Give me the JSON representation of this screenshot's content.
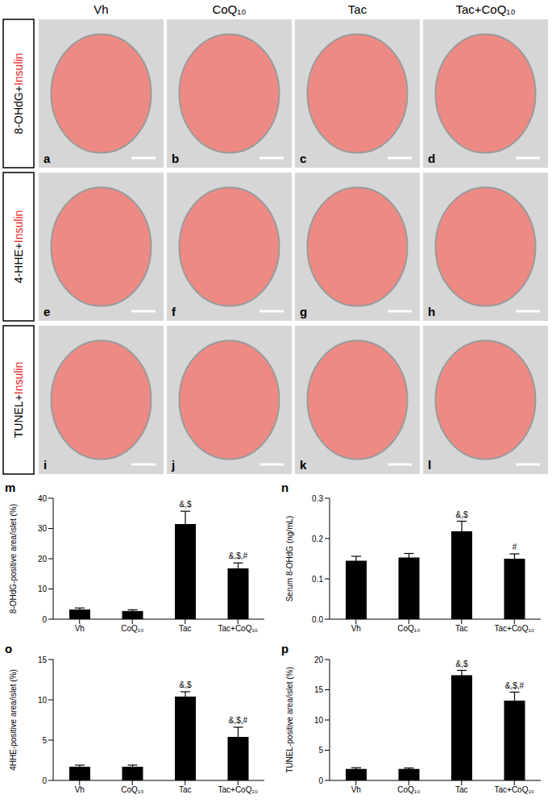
{
  "image_grid": {
    "columns": [
      "Vh",
      "CoQ₁₀",
      "Tac",
      "Tac+CoQ₁₀"
    ],
    "rows": [
      {
        "label": [
          "8-OHdG+",
          "Insulin"
        ],
        "panels": [
          "a",
          "b",
          "c",
          "d"
        ]
      },
      {
        "label": [
          "4-HHE+",
          "Insulin"
        ],
        "panels": [
          "e",
          "f",
          "g",
          "h"
        ]
      },
      {
        "label": [
          "TUNEL+",
          "Insulin"
        ],
        "panels": [
          "i",
          "j",
          "k",
          "l"
        ]
      }
    ]
  },
  "chart_data": [
    {
      "panel_label": "m",
      "type": "bar",
      "y_label": "8-OHdG-positive area/islet (%)",
      "categories": [
        "Vh",
        "CoQ₁₀",
        "Tac",
        "Tac+CoQ₁₀"
      ],
      "values": [
        3.2,
        2.7,
        31.5,
        16.8
      ],
      "errors": [
        0.5,
        0.4,
        4.2,
        1.8
      ],
      "annotations": [
        null,
        null,
        "&,$",
        "&,$,#"
      ],
      "color": "#000000",
      "ylim": [
        0,
        40
      ],
      "yticks": [
        0,
        10,
        20,
        30,
        40
      ]
    },
    {
      "panel_label": "n",
      "type": "bar",
      "y_label": "Serum 8-OHdG (ng/mL)",
      "categories": [
        "Vh",
        "CoQ₁₀",
        "Tac",
        "Tac+CoQ₁₀"
      ],
      "values": [
        0.145,
        0.153,
        0.218,
        0.15
      ],
      "errors": [
        0.011,
        0.01,
        0.025,
        0.012
      ],
      "annotations": [
        null,
        null,
        "&,$",
        "#"
      ],
      "color": "#000000",
      "ylim": [
        0,
        0.3
      ],
      "yticks": [
        {
          "value": 0,
          "label": "0.0"
        },
        0.1,
        0.2,
        0.3
      ]
    },
    {
      "panel_label": "o",
      "type": "bar",
      "y_label": "4HHE-positive area/islet (%)",
      "categories": [
        "Vh",
        "CoQ₁₀",
        "Tac",
        "Tac+CoQ₁₀"
      ],
      "values": [
        1.7,
        1.7,
        10.4,
        5.4
      ],
      "errors": [
        0.2,
        0.2,
        0.6,
        1.2
      ],
      "annotations": [
        null,
        null,
        "&,$",
        "&,$,#"
      ],
      "color": "#000000",
      "ylim": [
        0,
        15
      ],
      "yticks": [
        0,
        5,
        10,
        15
      ]
    },
    {
      "panel_label": "p",
      "type": "bar",
      "y_label": "TUNEL-positive area/islet (%)",
      "categories": [
        "Vh",
        "CoQ₁₀",
        "Tac",
        "Tac+CoQ₁₀"
      ],
      "values": [
        1.9,
        1.9,
        17.4,
        13.2
      ],
      "errors": [
        0.2,
        0.15,
        0.8,
        1.4
      ],
      "annotations": [
        null,
        null,
        "&,$",
        "&,$,#"
      ],
      "color": "#000000",
      "ylim": [
        0,
        20
      ],
      "yticks": [
        0,
        5,
        10,
        15,
        20
      ]
    }
  ]
}
